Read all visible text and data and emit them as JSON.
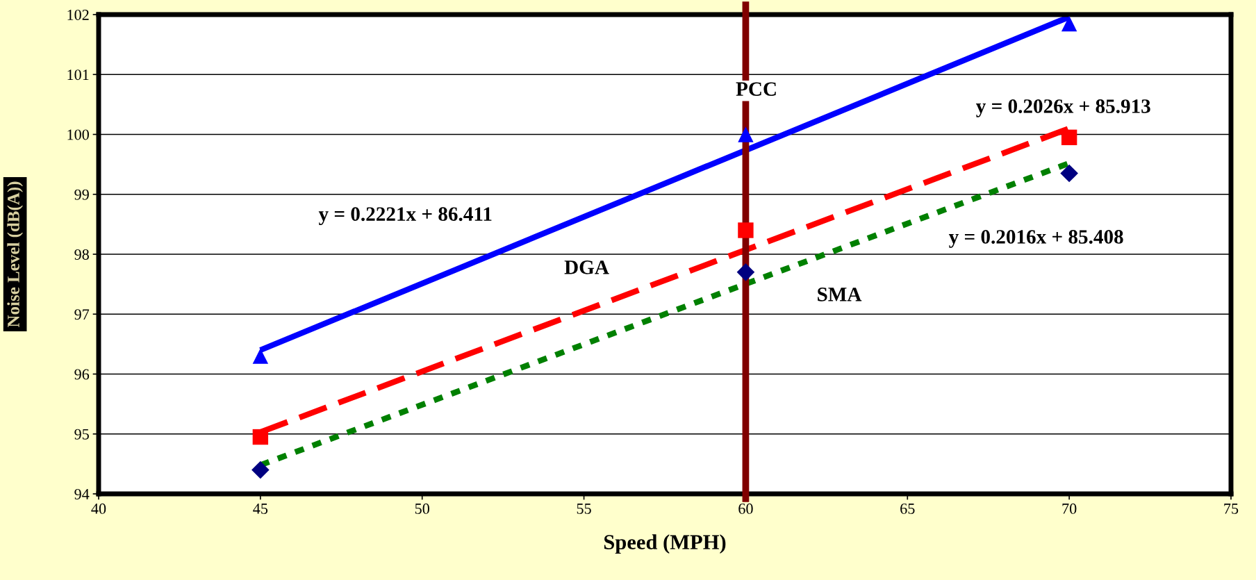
{
  "chart_data": {
    "type": "line",
    "xlabel": "Speed (MPH)",
    "ylabel": "Noise Level (dB(A))",
    "xlim": [
      40,
      75
    ],
    "xticks": [
      40,
      45,
      50,
      55,
      60,
      65,
      70,
      75
    ],
    "ylim": [
      94,
      102
    ],
    "yticks": [
      94,
      95,
      96,
      97,
      98,
      99,
      100,
      101,
      102
    ],
    "grid": "y",
    "legend": false,
    "series": [
      {
        "type": "scatter",
        "marker": "triangle",
        "color": "#0000ff",
        "x": [
          45,
          60,
          70
        ],
        "values": [
          96.3,
          100.0,
          101.85
        ]
      },
      {
        "type": "scatter",
        "marker": "square",
        "color": "#ff0000",
        "x": [
          45,
          60,
          70
        ],
        "values": [
          94.95,
          98.4,
          99.95
        ]
      },
      {
        "type": "scatter",
        "marker": "diamond",
        "color": "#000080",
        "x": [
          45,
          60,
          70
        ],
        "values": [
          94.4,
          97.7,
          99.35
        ]
      },
      {
        "line_style": "solid",
        "color": "#0000ff",
        "x": [
          45,
          70
        ],
        "values": [
          96.4,
          101.96
        ]
      },
      {
        "line_style": "dashed",
        "color": "#ff0000",
        "x": [
          45,
          70
        ],
        "values": [
          95.03,
          100.1
        ]
      },
      {
        "line_style": "dotted",
        "color": "#008000",
        "x": [
          45,
          70
        ],
        "values": [
          94.48,
          99.52
        ]
      }
    ],
    "ref_lines": [
      {
        "axis": "x",
        "value": 60,
        "color": "#800000"
      }
    ],
    "annotations": [
      "PCC",
      "DGA",
      "SMA",
      "y = 0.2221x + 86.411",
      "y = 0.2026x + 85.913",
      "y = 0.2016x + 85.408"
    ]
  }
}
